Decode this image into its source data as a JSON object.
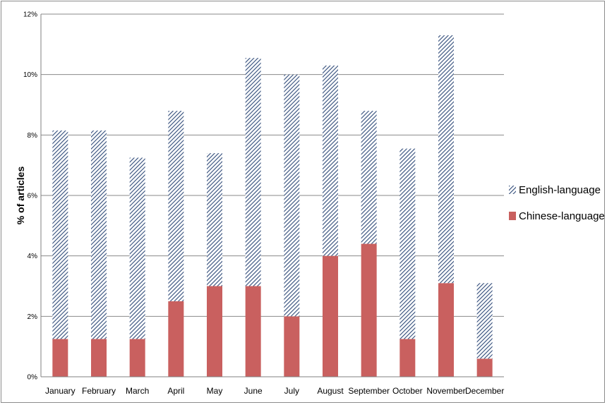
{
  "chart_data": {
    "type": "bar",
    "stacked": true,
    "categories": [
      "January",
      "February",
      "March",
      "April",
      "May",
      "June",
      "July",
      "August",
      "September",
      "October",
      "November",
      "December"
    ],
    "series": [
      {
        "name": "Chinese-language",
        "color": "#c9605f",
        "pattern": "solid",
        "values": [
          1.25,
          1.25,
          1.25,
          2.5,
          3.0,
          3.0,
          2.0,
          4.0,
          4.4,
          1.25,
          3.1,
          0.6
        ]
      },
      {
        "name": "English-language",
        "color": "#2f4a78",
        "pattern": "diagonal-hatch",
        "values": [
          6.9,
          6.9,
          6.0,
          6.3,
          4.4,
          7.55,
          8.0,
          6.3,
          4.4,
          6.3,
          8.2,
          2.5
        ]
      }
    ],
    "totals": [
      8.15,
      8.15,
      7.25,
      8.8,
      7.4,
      10.55,
      10.0,
      10.3,
      8.8,
      7.55,
      11.3,
      3.1
    ],
    "ylabel": "% of articles",
    "xlabel": "",
    "ylim": [
      0,
      12
    ],
    "yticks": [
      "0%",
      "2%",
      "4%",
      "6%",
      "8%",
      "10%",
      "12%"
    ],
    "ytick_values": [
      0,
      2,
      4,
      6,
      8,
      10,
      12
    ],
    "grid": true,
    "legend": "right",
    "legend_order": [
      "English-language",
      "Chinese-language"
    ]
  }
}
